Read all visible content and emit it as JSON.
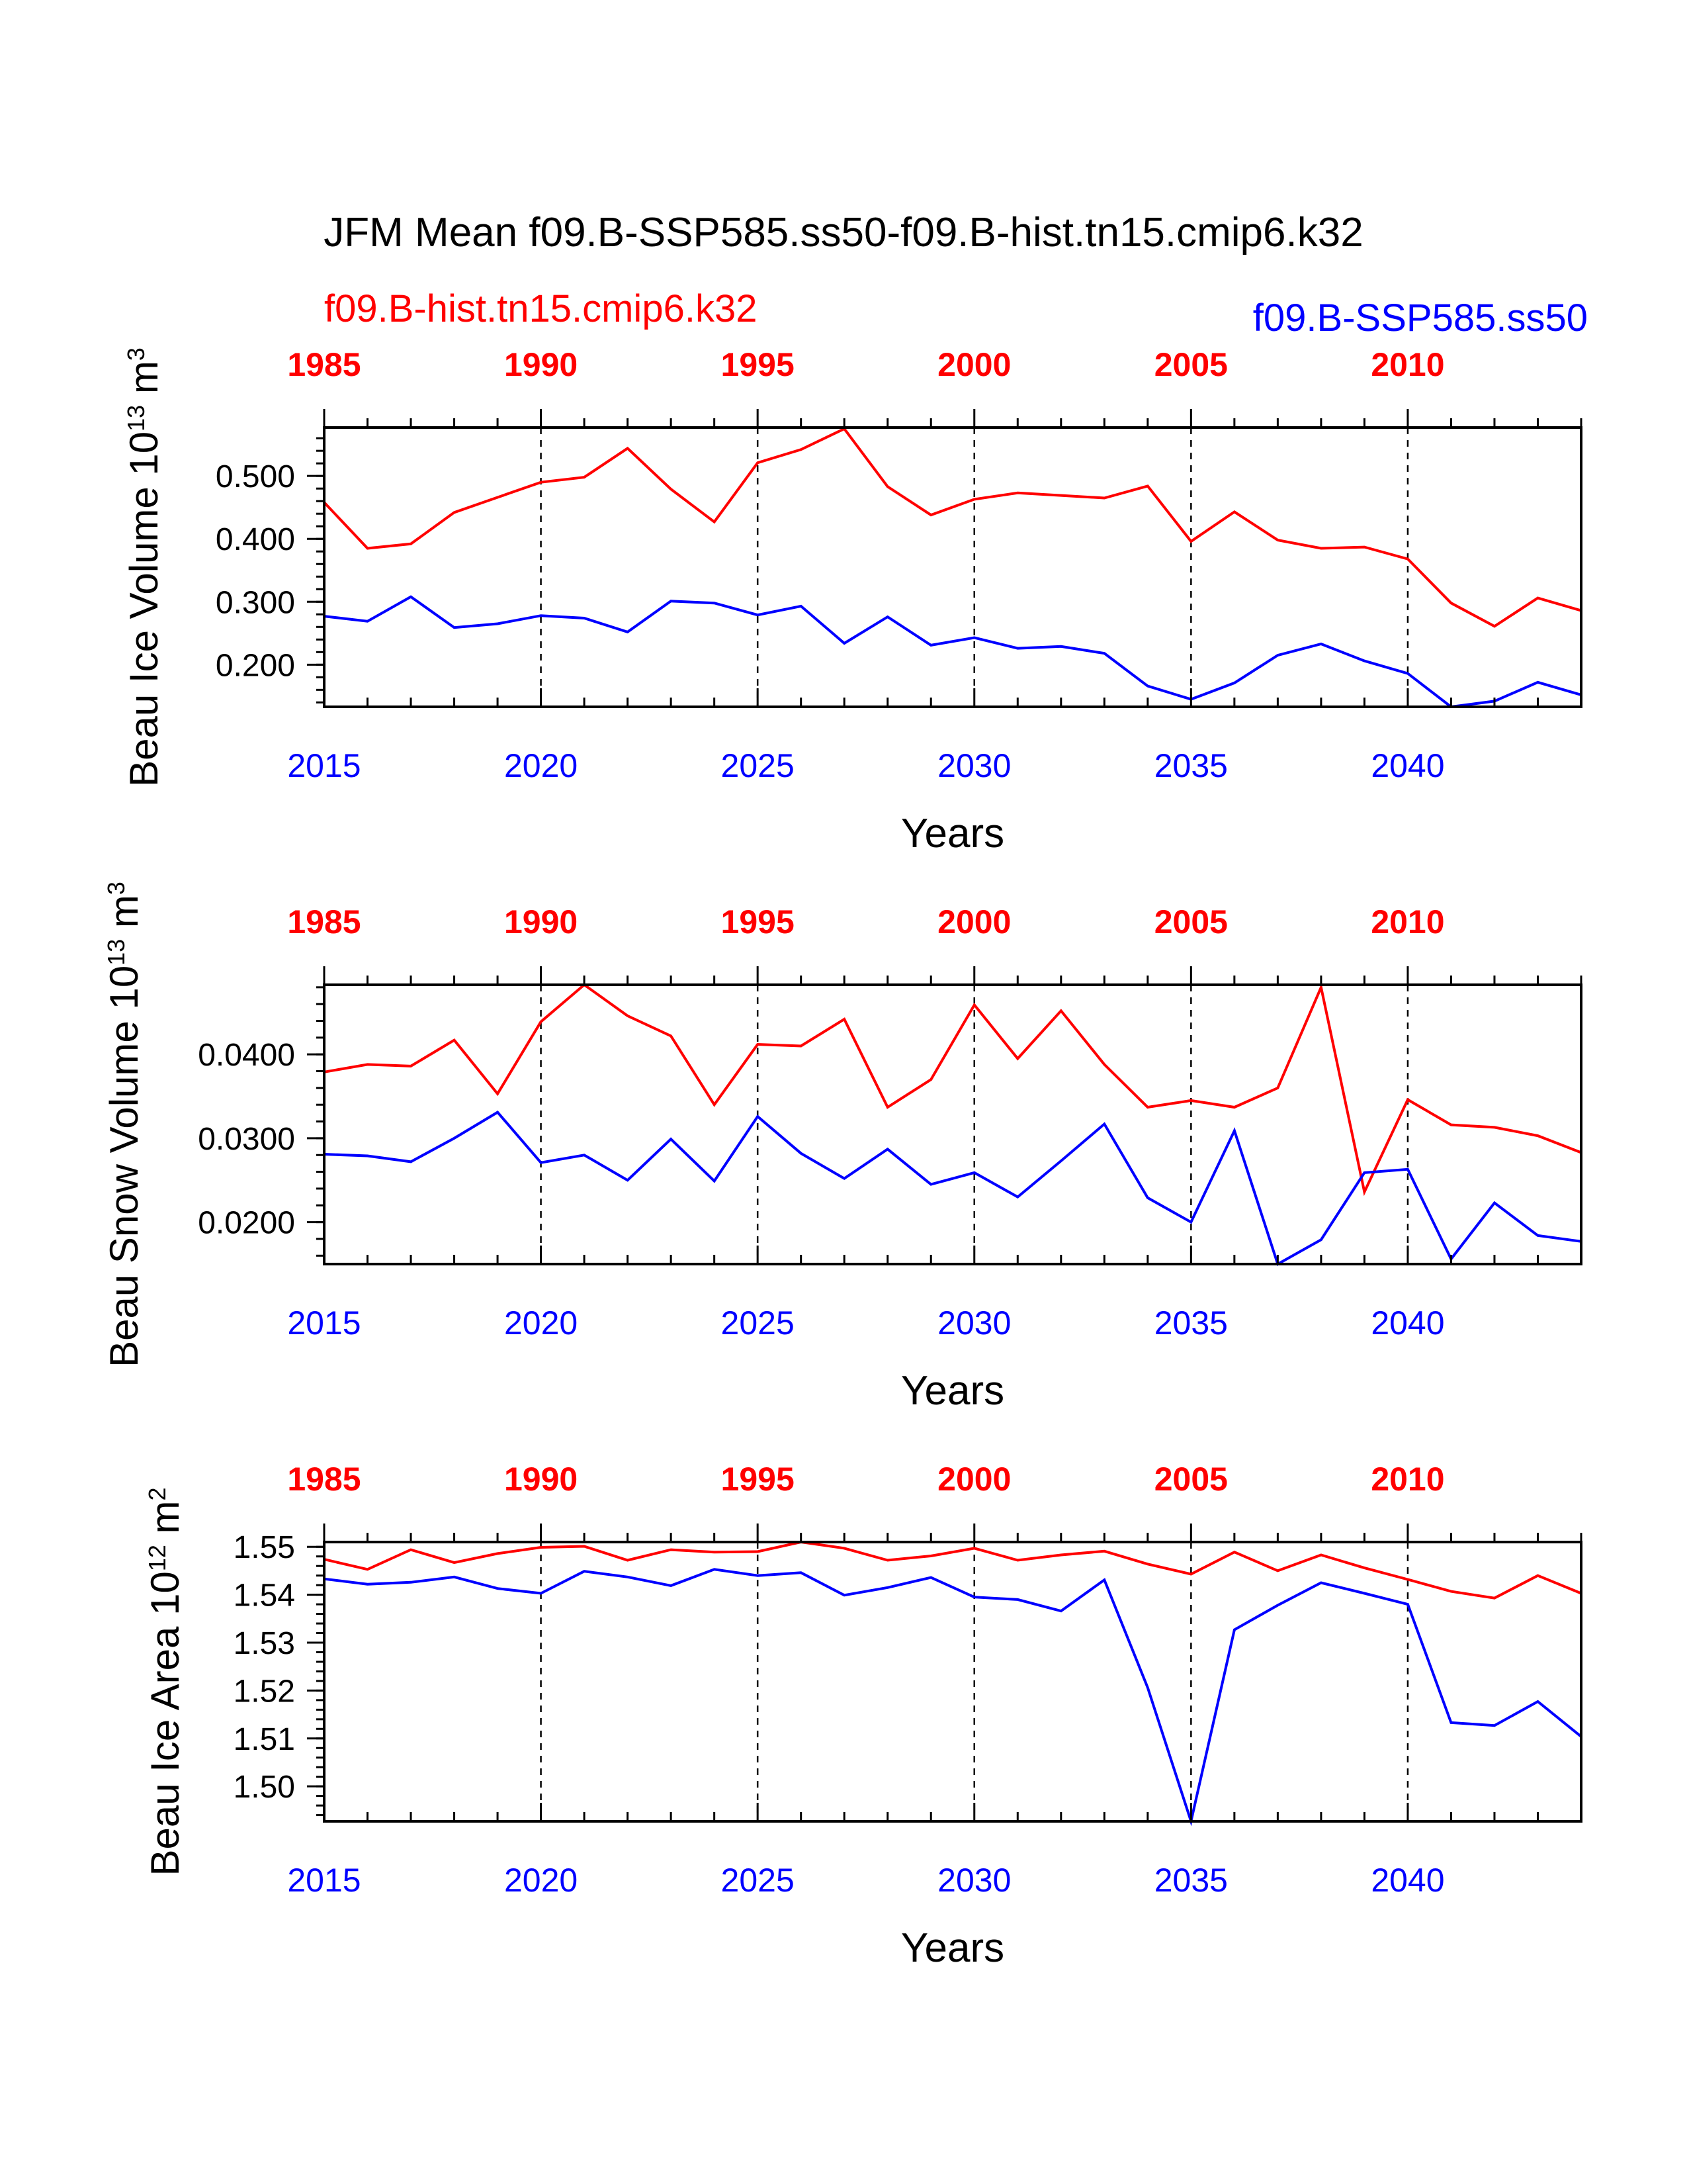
{
  "title": "JFM Mean f09.B-SSP585.ss50-f09.B-hist.tn15.cmip6.k32",
  "legend": {
    "hist_label": "f09.B-hist.tn15.cmip6.k32",
    "ssp_label": "f09.B-SSP585.ss50"
  },
  "colors": {
    "hist": "#ff0000",
    "ssp": "#0000ff",
    "axis": "#000000"
  },
  "chart_data": [
    {
      "type": "line",
      "ylabel_main": "Beau Ice Volume 10",
      "ylabel_exp": "13",
      "ylabel_unit": " m",
      "ylabel_unit_exp": "3",
      "xlabel": "Years",
      "ylim": [
        0.133,
        0.577
      ],
      "yticks": [
        0.2,
        0.3,
        0.4,
        0.5
      ],
      "ytick_labels": [
        "0.200",
        "0.300",
        "0.400",
        "0.500"
      ],
      "ytick_minor": 0.02,
      "x_bottom": [
        2015,
        2016,
        2017,
        2018,
        2019,
        2020,
        2021,
        2022,
        2023,
        2024,
        2025,
        2026,
        2027,
        2028,
        2029,
        2030,
        2031,
        2032,
        2033,
        2034,
        2035,
        2036,
        2037,
        2038,
        2039,
        2040,
        2041,
        2042,
        2043,
        2044
      ],
      "bottom_ticks": [
        "2015",
        "2020",
        "2025",
        "2030",
        "2035",
        "2040"
      ],
      "top_ticks": [
        "1985",
        "1990",
        "1995",
        "2000",
        "2005",
        "2010"
      ],
      "series": [
        {
          "name": "f09.B-hist.tn15.cmip6.k32",
          "color_key": "hist",
          "values": [
            0.458,
            0.385,
            0.392,
            0.442,
            0.466,
            0.49,
            0.498,
            0.544,
            0.479,
            0.427,
            0.521,
            0.542,
            0.575,
            0.483,
            0.438,
            0.463,
            0.473,
            0.469,
            0.465,
            0.484,
            0.396,
            0.443,
            0.398,
            0.385,
            0.387,
            0.368,
            0.298,
            0.261,
            0.306,
            0.286
          ]
        },
        {
          "name": "f09.B-SSP585.ss50",
          "color_key": "ssp",
          "values": [
            0.277,
            0.269,
            0.308,
            0.259,
            0.265,
            0.278,
            0.274,
            0.252,
            0.301,
            0.298,
            0.279,
            0.293,
            0.234,
            0.276,
            0.231,
            0.243,
            0.226,
            0.229,
            0.218,
            0.166,
            0.145,
            0.171,
            0.215,
            0.233,
            0.206,
            0.186,
            0.133,
            0.142,
            0.172,
            0.152
          ]
        }
      ]
    },
    {
      "type": "line",
      "ylabel_main": "Beau Snow Volume 10",
      "ylabel_exp": "13",
      "ylabel_unit": " m",
      "ylabel_unit_exp": "3",
      "xlabel": "Years",
      "ylim": [
        0.015,
        0.0483
      ],
      "yticks": [
        0.02,
        0.03,
        0.04
      ],
      "ytick_labels": [
        "0.0200",
        "0.0300",
        "0.0400"
      ],
      "ytick_minor": 0.002,
      "x_bottom": [
        2015,
        2016,
        2017,
        2018,
        2019,
        2020,
        2021,
        2022,
        2023,
        2024,
        2025,
        2026,
        2027,
        2028,
        2029,
        2030,
        2031,
        2032,
        2033,
        2034,
        2035,
        2036,
        2037,
        2038,
        2039,
        2040,
        2041,
        2042,
        2043,
        2044
      ],
      "bottom_ticks": [
        "2015",
        "2020",
        "2025",
        "2030",
        "2035",
        "2040"
      ],
      "top_ticks": [
        "1985",
        "1990",
        "1995",
        "2000",
        "2005",
        "2010"
      ],
      "series": [
        {
          "name": "f09.B-hist.tn15.cmip6.k32",
          "color_key": "hist",
          "values": [
            0.0379,
            0.0388,
            0.0386,
            0.0417,
            0.0353,
            0.0439,
            0.0483,
            0.0446,
            0.0422,
            0.034,
            0.0412,
            0.041,
            0.0442,
            0.0337,
            0.037,
            0.0459,
            0.0395,
            0.0452,
            0.0388,
            0.0337,
            0.0345,
            0.0337,
            0.036,
            0.048,
            0.0236,
            0.0346,
            0.0316,
            0.0313,
            0.0303,
            0.0283
          ]
        },
        {
          "name": "f09.B-SSP585.ss50",
          "color_key": "ssp",
          "values": [
            0.0281,
            0.0279,
            0.0272,
            0.03,
            0.0331,
            0.0271,
            0.028,
            0.025,
            0.0299,
            0.0249,
            0.0326,
            0.0282,
            0.0252,
            0.0287,
            0.0245,
            0.0259,
            0.023,
            0.0273,
            0.0317,
            0.0229,
            0.02,
            0.0309,
            0.015,
            0.0179,
            0.0259,
            0.0263,
            0.0156,
            0.0223,
            0.0184,
            0.0177
          ]
        }
      ]
    },
    {
      "type": "line",
      "ylabel_main": "Beau Ice Area 10",
      "ylabel_exp": "12",
      "ylabel_unit": " m",
      "ylabel_unit_exp": "2",
      "xlabel": "Years",
      "ylim": [
        1.4927,
        1.551
      ],
      "yticks": [
        1.5,
        1.51,
        1.52,
        1.53,
        1.54,
        1.55
      ],
      "ytick_labels": [
        "1.50",
        "1.51",
        "1.52",
        "1.53",
        "1.54",
        "1.55"
      ],
      "ytick_minor": 0.002,
      "x_bottom": [
        2015,
        2016,
        2017,
        2018,
        2019,
        2020,
        2021,
        2022,
        2023,
        2024,
        2025,
        2026,
        2027,
        2028,
        2029,
        2030,
        2031,
        2032,
        2033,
        2034,
        2035,
        2036,
        2037,
        2038,
        2039,
        2040,
        2041,
        2042,
        2043,
        2044
      ],
      "bottom_ticks": [
        "2015",
        "2020",
        "2025",
        "2030",
        "2035",
        "2040"
      ],
      "top_ticks": [
        "1985",
        "1990",
        "1995",
        "2000",
        "2005",
        "2010"
      ],
      "series": [
        {
          "name": "f09.B-hist.tn15.cmip6.k32",
          "color_key": "hist",
          "values": [
            1.5474,
            1.5453,
            1.5494,
            1.5467,
            1.5486,
            1.5499,
            1.5501,
            1.5472,
            1.5494,
            1.5489,
            1.549,
            1.551,
            1.5497,
            1.5472,
            1.5481,
            1.5497,
            1.5472,
            1.5483,
            1.5491,
            1.5464,
            1.5443,
            1.5489,
            1.545,
            1.5483,
            1.5456,
            1.5432,
            1.5407,
            1.5393,
            1.544,
            1.5403
          ]
        },
        {
          "name": "f09.B-SSP585.ss50",
          "color_key": "ssp",
          "values": [
            1.5433,
            1.5422,
            1.5426,
            1.5437,
            1.5413,
            1.5403,
            1.5449,
            1.5437,
            1.5419,
            1.5453,
            1.544,
            1.5446,
            1.5399,
            1.5415,
            1.5436,
            1.5395,
            1.539,
            1.5366,
            1.5431,
            1.5206,
            1.4927,
            1.5327,
            1.5378,
            1.5425,
            1.5403,
            1.538,
            1.5133,
            1.5127,
            1.5177,
            1.5104
          ]
        }
      ]
    }
  ]
}
